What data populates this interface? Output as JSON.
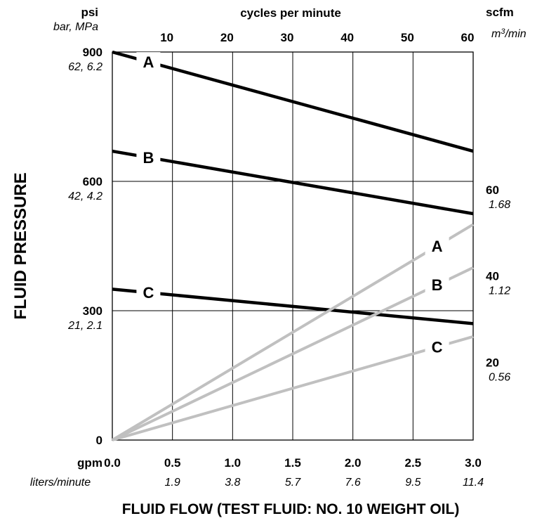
{
  "chart_data": {
    "type": "line",
    "title": "",
    "xlabel": "FLUID FLOW (TEST FLUID: NO. 10 WEIGHT OIL)",
    "ylabel": "FLUID PRESSURE",
    "xlim": [
      0,
      3.0
    ],
    "ylim": [
      0,
      900
    ],
    "grid": true,
    "x_ticks": {
      "unit": "gpm",
      "unit2": "liters/minute",
      "values": [
        "0.0",
        "0.5",
        "1.0",
        "1.5",
        "2.0",
        "2.5",
        "3.0"
      ],
      "values2": [
        "",
        "1.9",
        "3.8",
        "5.7",
        "7.6",
        "9.5",
        "11.4"
      ]
    },
    "x_top": {
      "label": "cycles per minute",
      "ticks": [
        "10",
        "20",
        "30",
        "40",
        "50",
        "60"
      ],
      "positions_gpm": [
        0.5,
        1.0,
        1.5,
        2.0,
        2.5,
        3.0
      ]
    },
    "y_left": {
      "unit": "psi",
      "unit2": "bar, MPa",
      "ticks": [
        {
          "value": 900,
          "label": "900",
          "label2": "62, 6.2"
        },
        {
          "value": 600,
          "label": "600",
          "label2": "42, 4.2"
        },
        {
          "value": 300,
          "label": "300",
          "label2": "21, 2.1"
        },
        {
          "value": 0,
          "label": "0",
          "label2": ""
        }
      ]
    },
    "y_right": {
      "unit": "scfm",
      "unit2_pre": "m",
      "unit2_sup": "3",
      "unit2_post": "/min",
      "range": [
        0,
        90
      ],
      "ticks": [
        {
          "value": 60,
          "label": "60",
          "label2": "1.68"
        },
        {
          "value": 40,
          "label": "40",
          "label2": "1.12"
        },
        {
          "value": 20,
          "label": "20",
          "label2": "0.56"
        }
      ]
    },
    "series": [
      {
        "name": "A",
        "kind": "fluid-pressure",
        "axis": "psi",
        "x": [
          0.0,
          3.0
        ],
        "y": [
          900,
          670
        ],
        "color": "#000000",
        "label_at_x": 0.3
      },
      {
        "name": "B",
        "kind": "fluid-pressure",
        "axis": "psi",
        "x": [
          0.0,
          3.0
        ],
        "y": [
          670,
          525
        ],
        "color": "#000000",
        "label_at_x": 0.3
      },
      {
        "name": "C",
        "kind": "fluid-pressure",
        "axis": "psi",
        "x": [
          0.0,
          3.0
        ],
        "y": [
          350,
          270
        ],
        "color": "#000000",
        "label_at_x": 0.3
      },
      {
        "name": "A",
        "kind": "air-consumption",
        "axis": "scfm",
        "x": [
          0.0,
          3.0
        ],
        "y": [
          0,
          50
        ],
        "color": "#c0c0c0",
        "label_at_x": 2.7
      },
      {
        "name": "B",
        "kind": "air-consumption",
        "axis": "scfm",
        "x": [
          0.0,
          3.0
        ],
        "y": [
          0,
          40
        ],
        "color": "#c0c0c0",
        "label_at_x": 2.7
      },
      {
        "name": "C",
        "kind": "air-consumption",
        "axis": "scfm",
        "x": [
          0.0,
          3.0
        ],
        "y": [
          0,
          24
        ],
        "color": "#c0c0c0",
        "label_at_x": 2.7
      }
    ]
  }
}
